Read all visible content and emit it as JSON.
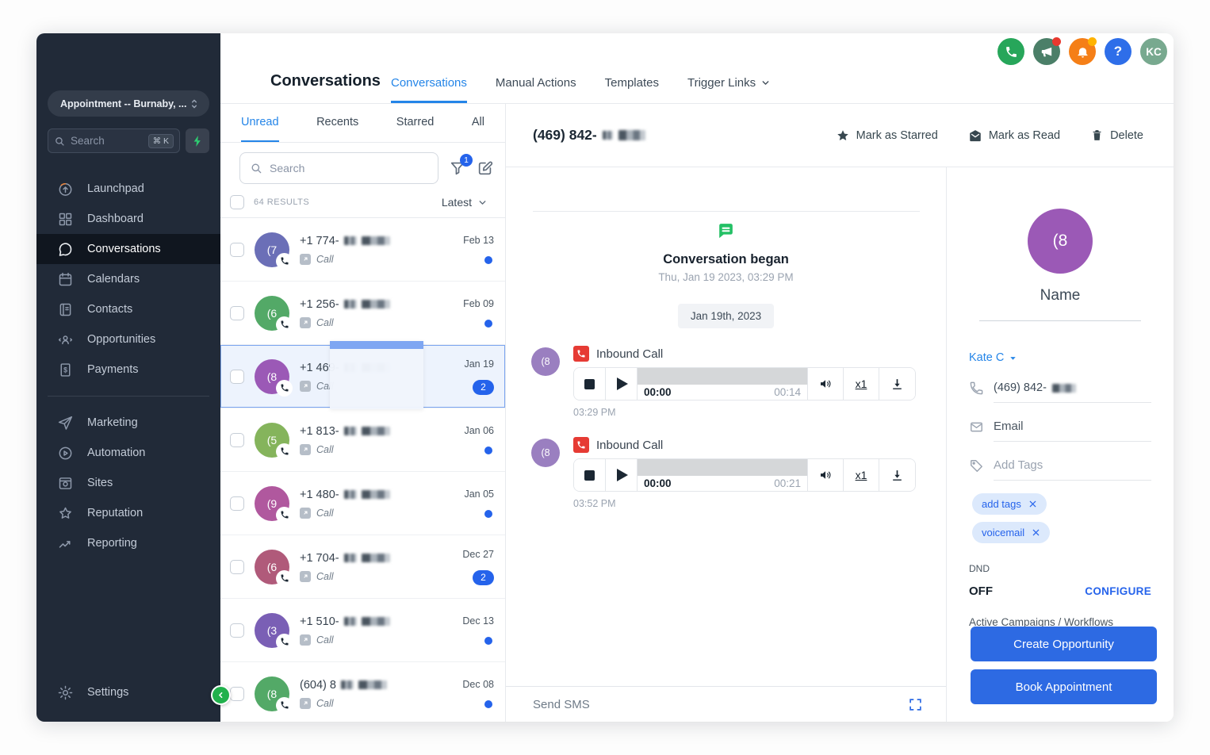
{
  "sidebar": {
    "location_selector": "Appointment -- Burnaby, ...",
    "search_placeholder": "Search",
    "search_shortcut": "⌘ K",
    "nav": [
      {
        "label": "Launchpad",
        "icon": "launchpad-icon"
      },
      {
        "label": "Dashboard",
        "icon": "dashboard-icon"
      },
      {
        "label": "Conversations",
        "icon": "conversations-icon",
        "active": true
      },
      {
        "label": "Calendars",
        "icon": "calendars-icon"
      },
      {
        "label": "Contacts",
        "icon": "contacts-icon"
      },
      {
        "label": "Opportunities",
        "icon": "opportunities-icon"
      },
      {
        "label": "Payments",
        "icon": "payments-icon",
        "divider_after": true
      },
      {
        "label": "Marketing",
        "icon": "marketing-icon"
      },
      {
        "label": "Automation",
        "icon": "automation-icon"
      },
      {
        "label": "Sites",
        "icon": "sites-icon"
      },
      {
        "label": "Reputation",
        "icon": "reputation-icon"
      },
      {
        "label": "Reporting",
        "icon": "reporting-icon"
      }
    ],
    "settings_label": "Settings"
  },
  "header": {
    "title": "Conversations",
    "tabs": [
      {
        "label": "Conversations",
        "active": true
      },
      {
        "label": "Manual Actions"
      },
      {
        "label": "Templates"
      },
      {
        "label": "Trigger Links",
        "chevron": true
      }
    ],
    "avatar_initials": "KC"
  },
  "list": {
    "tabs": [
      {
        "label": "Unread",
        "active": true
      },
      {
        "label": "Recents"
      },
      {
        "label": "Starred"
      },
      {
        "label": "All"
      }
    ],
    "search_placeholder": "Search",
    "filter_badge": "1",
    "results_count": "64 RESULTS",
    "sort_label": "Latest",
    "items": [
      {
        "avatar": "(7",
        "color": "#6b6fb7",
        "phone": "+1 774-",
        "channel": "Call",
        "date": "Feb 13",
        "unread": "dot"
      },
      {
        "avatar": "(6",
        "color": "#53a967",
        "phone": "+1 256-",
        "channel": "Call",
        "date": "Feb 09",
        "unread": "dot"
      },
      {
        "avatar": "(8",
        "color": "#9b59b6",
        "phone": "+1 469-",
        "channel": "Call",
        "date": "Jan 19",
        "unread": "2",
        "selected": true
      },
      {
        "avatar": "(5",
        "color": "#85b45c",
        "phone": "+1 813-",
        "channel": "Call",
        "date": "Jan 06",
        "unread": "dot"
      },
      {
        "avatar": "(9",
        "color": "#b0589e",
        "phone": "+1 480-",
        "channel": "Call",
        "date": "Jan 05",
        "unread": "dot"
      },
      {
        "avatar": "(6",
        "color": "#b05a7a",
        "phone": "+1 704-",
        "channel": "Call",
        "date": "Dec 27",
        "unread": "2"
      },
      {
        "avatar": "(3",
        "color": "#7a5fb5",
        "phone": "+1 510-",
        "channel": "Call",
        "date": "Dec 13",
        "unread": "dot"
      },
      {
        "avatar": "(8",
        "color": "#53a967",
        "phone": "(604) 8",
        "channel": "Call",
        "date": "Dec 08",
        "unread": "dot"
      }
    ]
  },
  "thread": {
    "contact_phone": "(469) 842-",
    "actions": [
      "Mark as Starred",
      "Mark as Read",
      "Delete"
    ],
    "began_title": "Conversation began",
    "began_time": "Thu, Jan 19 2023, 03:29 PM",
    "date_chip": "Jan 19th, 2023",
    "calls": [
      {
        "type": "Inbound Call",
        "avatar": "(8",
        "avatar_color": "#9a7fc0",
        "elapsed": "00:00",
        "duration": "00:14",
        "rate": "x1",
        "time": "03:29 PM"
      },
      {
        "type": "Inbound Call",
        "avatar": "(8",
        "avatar_color": "#9a7fc0",
        "elapsed": "00:00",
        "duration": "00:21",
        "rate": "x1",
        "time": "03:52 PM"
      }
    ],
    "composer_placeholder": "Send SMS"
  },
  "contact": {
    "avatar_text": "(8",
    "name_label": "Name",
    "owner": "Kate C",
    "phone": "(469) 842-",
    "email_placeholder": "Email",
    "tags_placeholder": "Add Tags",
    "tags": [
      "add tags",
      "voicemail"
    ],
    "dnd_label": "DND",
    "dnd_value": "OFF",
    "configure_label": "CONFIGURE",
    "campaigns_label": "Active Campaigns / Workflows",
    "buttons": [
      "Create Opportunity",
      "Book Appointment"
    ]
  },
  "colors": {
    "accent_blue": "#2485e8",
    "primary_button_blue": "#2d6ae3",
    "unread_blue": "#2563eb",
    "sidebar_bg": "#212a38",
    "active_nav_bg": "#10161f",
    "success_green": "#23c065",
    "phone_circle_green": "#27a65a",
    "megaphone_circle_teal": "#4b7f68",
    "bell_circle_orange": "#f57f17",
    "help_circle_blue": "#2e6ee9",
    "avatar_kc_sage": "#78a98f",
    "inbound_call_red": "#e63b34",
    "selected_row_bg": "#edf3fd"
  }
}
